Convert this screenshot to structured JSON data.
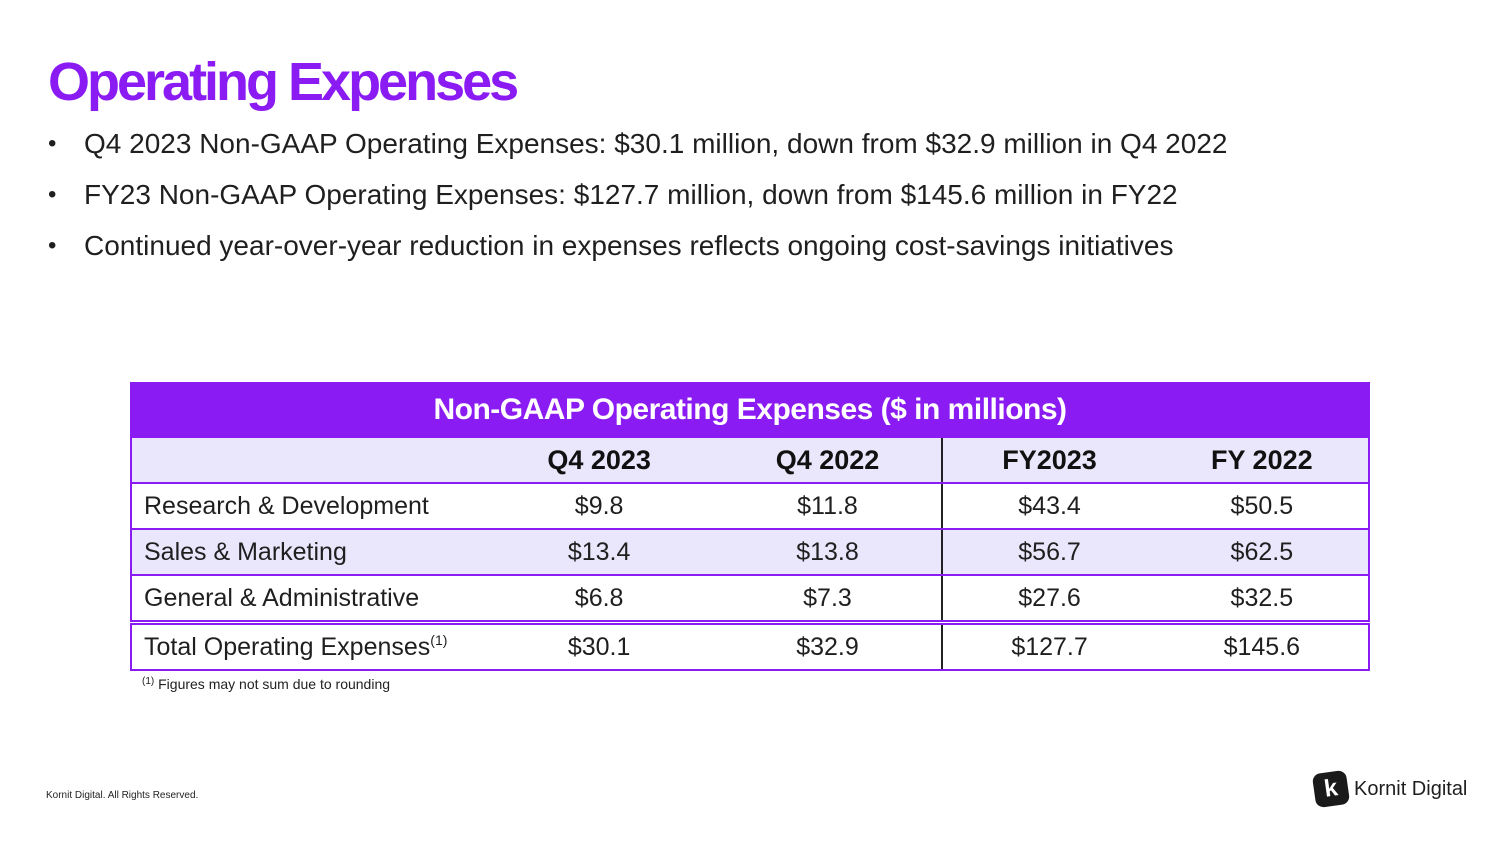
{
  "title": "Operating Expenses",
  "bullets": [
    "Q4 2023 Non-GAAP Operating Expenses: $30.1 million, down from $32.9 million in Q4 2022",
    "FY23 Non-GAAP Operating Expenses: $127.7 million, down from $145.6 million in FY22",
    "Continued year-over-year reduction in expenses reflects ongoing cost-savings initiatives"
  ],
  "table": {
    "caption": "Non-GAAP Operating Expenses ($ in millions)",
    "columns": [
      "Q4 2023",
      "Q4 2022",
      "FY2023",
      "FY 2022"
    ],
    "rows": [
      {
        "label": "Research & Development",
        "values": [
          "$9.8",
          "$11.8",
          "$43.4",
          "$50.5"
        ]
      },
      {
        "label": "Sales & Marketing",
        "values": [
          "$13.4",
          "$13.8",
          "$56.7",
          "$62.5"
        ]
      },
      {
        "label": "General & Administrative",
        "values": [
          "$6.8",
          "$7.3",
          "$27.6",
          "$32.5"
        ]
      }
    ],
    "total": {
      "label": "Total Operating Expenses",
      "marker": "(1)",
      "values": [
        "$30.1",
        "$32.9",
        "$127.7",
        "$145.6"
      ]
    }
  },
  "footnote": {
    "marker": "(1)",
    "text": "Figures may not sum due to rounding"
  },
  "copyright": "Kornit Digital. All Rights Reserved.",
  "logo": {
    "mark": "k",
    "text": "Kornit Digital"
  },
  "colors": {
    "accent": "#8a1bf2",
    "shade": "#eae6fb"
  }
}
